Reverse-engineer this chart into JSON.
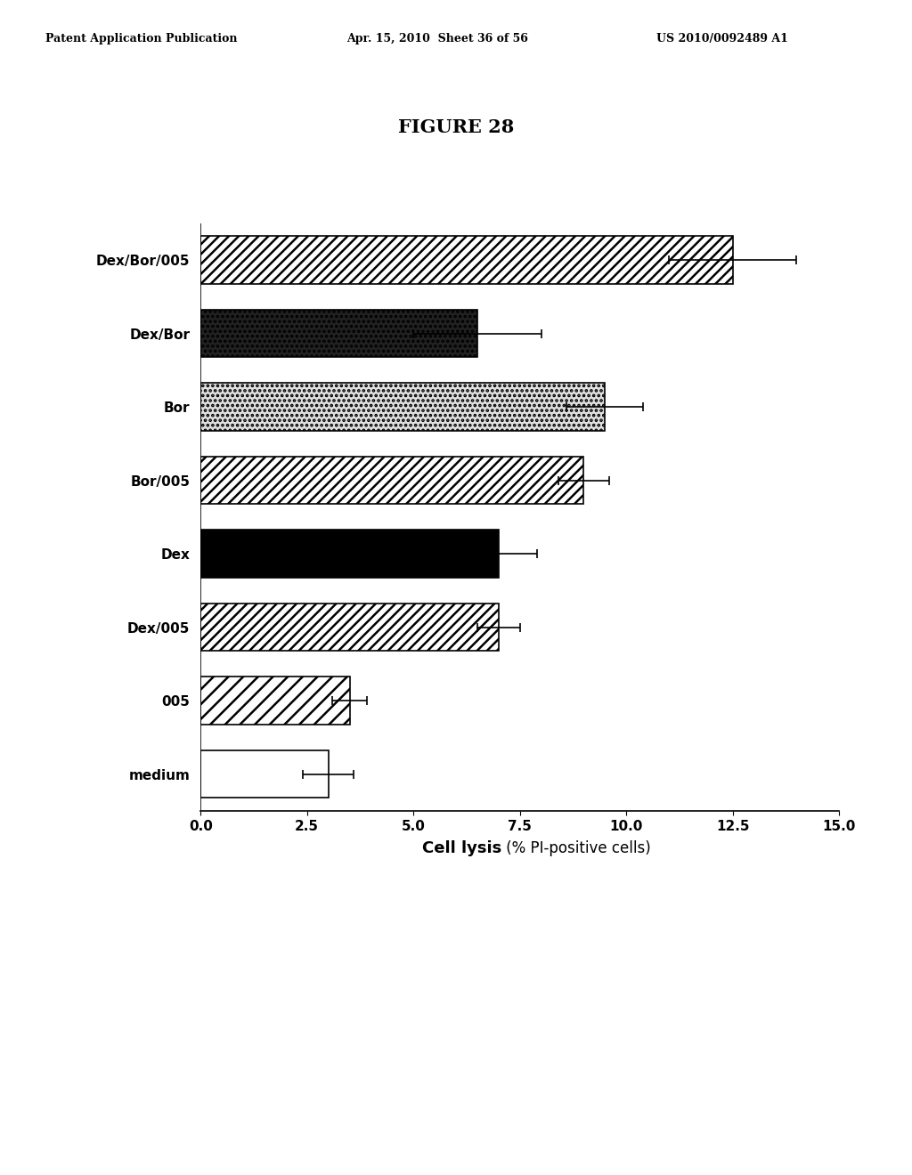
{
  "categories": [
    "Dex/Bor/005",
    "Dex/Bor",
    "Bor",
    "Bor/005",
    "Dex",
    "Dex/005",
    "005",
    "medium"
  ],
  "values": [
    12.5,
    6.5,
    9.5,
    9.0,
    7.0,
    7.0,
    3.5,
    3.0
  ],
  "errors": [
    1.5,
    1.5,
    0.9,
    0.6,
    0.9,
    0.5,
    0.4,
    0.6
  ],
  "xlim": [
    0.0,
    15.0
  ],
  "xticks": [
    0.0,
    2.5,
    5.0,
    7.5,
    10.0,
    12.5,
    15.0
  ],
  "xtick_labels": [
    "0.0",
    "2.5",
    "5.0",
    "7.5",
    "10.0",
    "12.5",
    "15.0"
  ],
  "figure_title": "FIGURE 28",
  "header_left": "Patent Application Publication",
  "header_center": "Apr. 15, 2010  Sheet 36 of 56",
  "header_right": "US 2010/0092489 A1",
  "background_color": "#ffffff",
  "bar_height": 0.65,
  "xlabel_bold": "Cell lysis",
  "xlabel_normal": " (% PI-positive cells)"
}
